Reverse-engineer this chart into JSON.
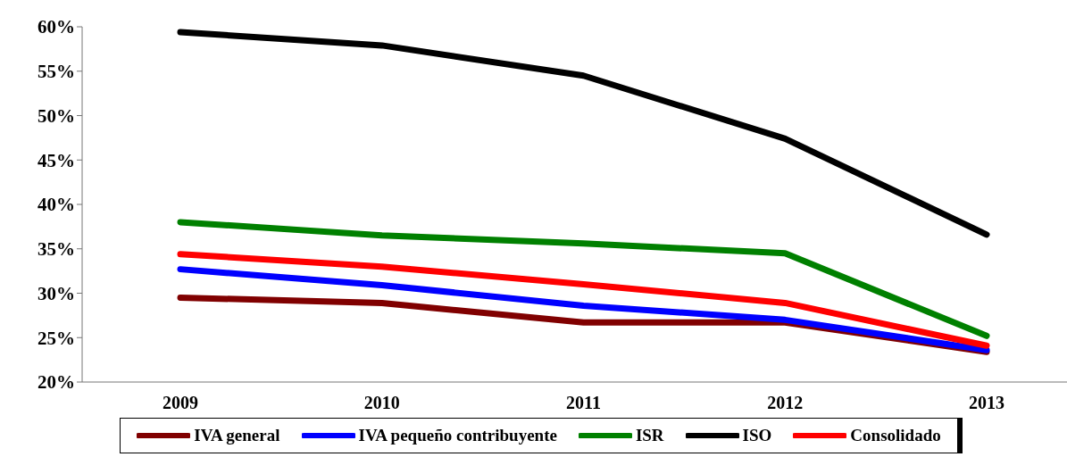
{
  "chart_data": {
    "type": "line",
    "categories": [
      "2009",
      "2010",
      "2011",
      "2012",
      "2013"
    ],
    "series": [
      {
        "name": "IVA general",
        "color": "#800000",
        "values": [
          29.5,
          28.9,
          26.7,
          26.7,
          23.4
        ]
      },
      {
        "name": "IVA pequeño contribuyente",
        "color": "#0000ff",
        "values": [
          32.7,
          30.9,
          28.6,
          27.0,
          23.6
        ]
      },
      {
        "name": "ISR",
        "color": "#008000",
        "values": [
          38.0,
          36.5,
          35.6,
          34.5,
          25.2
        ]
      },
      {
        "name": "ISO",
        "color": "#000000",
        "values": [
          59.4,
          57.9,
          54.5,
          47.4,
          36.6
        ]
      },
      {
        "name": "Consolidado",
        "color": "#ff0000",
        "values": [
          34.4,
          33.0,
          31.0,
          28.9,
          24.1
        ]
      }
    ],
    "ylim": [
      20,
      60
    ],
    "yticks": [
      {
        "value": 20,
        "label": "20%"
      },
      {
        "value": 25,
        "label": "25%"
      },
      {
        "value": 30,
        "label": "30%"
      },
      {
        "value": 35,
        "label": "35%"
      },
      {
        "value": 40,
        "label": "40%"
      },
      {
        "value": 45,
        "label": "45%"
      },
      {
        "value": 50,
        "label": "50%"
      },
      {
        "value": 55,
        "label": "55%"
      },
      {
        "value": 60,
        "label": "60%"
      }
    ],
    "grid": false,
    "legend": "bottom",
    "marker": "none",
    "line_style": "solid"
  }
}
